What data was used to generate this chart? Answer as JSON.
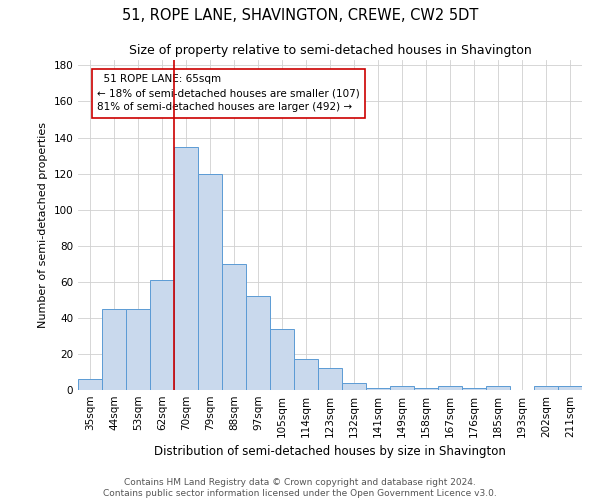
{
  "title": "51, ROPE LANE, SHAVINGTON, CREWE, CW2 5DT",
  "subtitle": "Size of property relative to semi-detached houses in Shavington",
  "xlabel": "Distribution of semi-detached houses by size in Shavington",
  "ylabel": "Number of semi-detached properties",
  "categories": [
    "35sqm",
    "44sqm",
    "53sqm",
    "62sqm",
    "70sqm",
    "79sqm",
    "88sqm",
    "97sqm",
    "105sqm",
    "114sqm",
    "123sqm",
    "132sqm",
    "141sqm",
    "149sqm",
    "158sqm",
    "167sqm",
    "176sqm",
    "185sqm",
    "193sqm",
    "202sqm",
    "211sqm"
  ],
  "values": [
    6,
    45,
    45,
    61,
    135,
    120,
    70,
    52,
    34,
    17,
    12,
    4,
    1,
    2,
    1,
    2,
    1,
    2,
    0,
    2,
    2
  ],
  "bar_color": "#c9d9ed",
  "bar_edge_color": "#5b9bd5",
  "bar_edge_width": 0.7,
  "vline_x": 3.5,
  "vline_color": "#cc0000",
  "annotation_text": "  51 ROPE LANE: 65sqm\n← 18% of semi-detached houses are smaller (107)\n81% of semi-detached houses are larger (492) →",
  "annotation_box_color": "#ffffff",
  "annotation_box_edge_color": "#cc0000",
  "ylim": [
    0,
    183
  ],
  "yticks": [
    0,
    20,
    40,
    60,
    80,
    100,
    120,
    140,
    160,
    180
  ],
  "grid_color": "#d0d0d0",
  "background_color": "#ffffff",
  "footer_text": "Contains HM Land Registry data © Crown copyright and database right 2024.\nContains public sector information licensed under the Open Government Licence v3.0.",
  "title_fontsize": 10.5,
  "subtitle_fontsize": 9,
  "xlabel_fontsize": 8.5,
  "ylabel_fontsize": 8,
  "tick_fontsize": 7.5,
  "annotation_fontsize": 7.5,
  "footer_fontsize": 6.5
}
